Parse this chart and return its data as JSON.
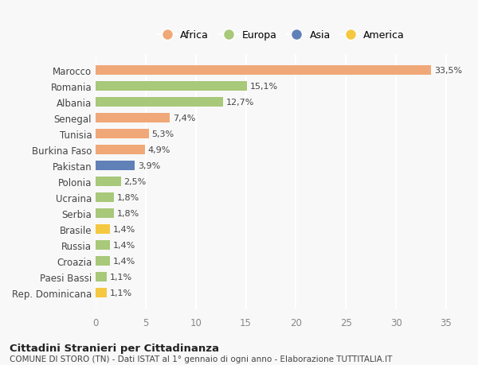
{
  "categories": [
    "Rep. Dominicana",
    "Paesi Bassi",
    "Croazia",
    "Russia",
    "Brasile",
    "Serbia",
    "Ucraina",
    "Polonia",
    "Pakistan",
    "Burkina Faso",
    "Tunisia",
    "Senegal",
    "Albania",
    "Romania",
    "Marocco"
  ],
  "values": [
    1.1,
    1.1,
    1.4,
    1.4,
    1.4,
    1.8,
    1.8,
    2.5,
    3.9,
    4.9,
    5.3,
    7.4,
    12.7,
    15.1,
    33.5
  ],
  "labels": [
    "1,1%",
    "1,1%",
    "1,4%",
    "1,4%",
    "1,4%",
    "1,8%",
    "1,8%",
    "2,5%",
    "3,9%",
    "4,9%",
    "5,3%",
    "7,4%",
    "12,7%",
    "15,1%",
    "33,5%"
  ],
  "colors": [
    "#f5c842",
    "#a8c87a",
    "#a8c87a",
    "#a8c87a",
    "#f5c842",
    "#a8c87a",
    "#a8c87a",
    "#a8c87a",
    "#6080b8",
    "#f0a878",
    "#f0a878",
    "#f0a878",
    "#a8c87a",
    "#a8c87a",
    "#f0a878"
  ],
  "legend_labels": [
    "Africa",
    "Europa",
    "Asia",
    "America"
  ],
  "legend_colors": [
    "#f0a878",
    "#a8c87a",
    "#6080b8",
    "#f5c842"
  ],
  "title1": "Cittadini Stranieri per Cittadinanza",
  "title2": "COMUNE DI STORO (TN) - Dati ISTAT al 1° gennaio di ogni anno - Elaborazione TUTTITALIA.IT",
  "xlim": [
    0,
    37
  ],
  "xticks": [
    0,
    5,
    10,
    15,
    20,
    25,
    30,
    35
  ],
  "background_color": "#f8f8f8",
  "grid_color": "#ffffff"
}
